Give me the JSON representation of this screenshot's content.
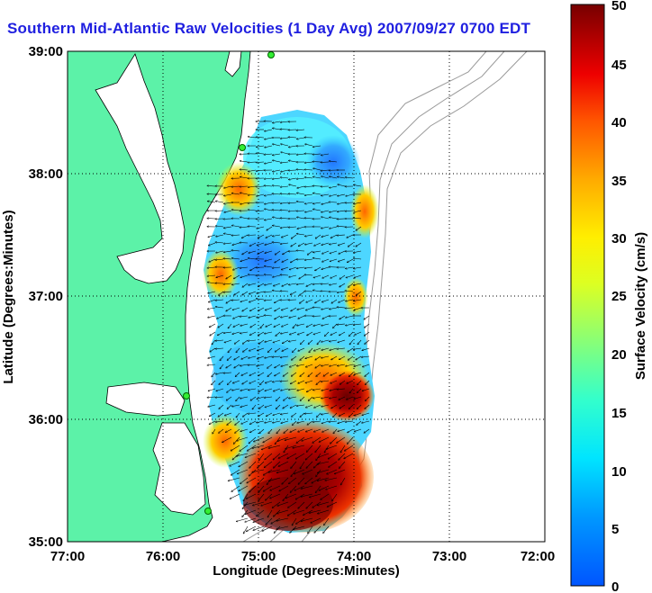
{
  "title": "Southern Mid-Atlantic Raw Velocities (1 Day Avg) 2007/09/27 0700 EDT",
  "axes": {
    "xlabel": "Longitude (Degrees:Minutes)",
    "ylabel": "Latitude (Degrees:Minutes)",
    "x_ticks": [
      "77:00",
      "76:00",
      "75:00",
      "74:00",
      "73:00",
      "72:00"
    ],
    "y_ticks": [
      "39:00",
      "38:00",
      "37:00",
      "36:00",
      "35:00"
    ]
  },
  "colorbar": {
    "label": "Surface Velocity (cm/s)",
    "min": 0,
    "max": 50,
    "ticks": [
      "50",
      "45",
      "40",
      "35",
      "30",
      "25",
      "20",
      "15",
      "10",
      "5",
      "0"
    ]
  },
  "colors": {
    "land": "#5cf2a8",
    "title": "#1f1fe0"
  },
  "map": {
    "lon_range": [
      -77,
      -72
    ],
    "lat_range": [
      35,
      39
    ],
    "grid": "dotted",
    "stations": 4
  }
}
